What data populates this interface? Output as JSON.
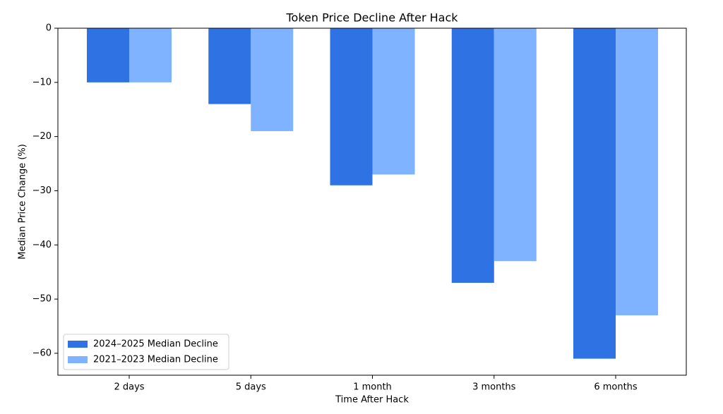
{
  "chart_data": {
    "type": "bar",
    "title": "Token Price Decline After Hack",
    "x_label": "Time After Hack",
    "y_label": "Median Price Change (%)",
    "categories": [
      "2 days",
      "5 days",
      "1 month",
      "3 months",
      "6 months"
    ],
    "series": [
      {
        "name": "2024–2025 Median Decline",
        "color": "#2f72e4",
        "values": [
          -10,
          -14,
          -29,
          -47,
          -61
        ]
      },
      {
        "name": "2021–2023 Median Decline",
        "color": "#7fb2ff",
        "values": [
          -10,
          -19,
          -27,
          -43,
          -53
        ]
      }
    ],
    "ylim": [
      -64.05,
      0
    ],
    "yticks": [
      0,
      {
        "value": -10,
        "label": "−10"
      },
      {
        "value": -20,
        "label": "−20"
      },
      {
        "value": -30,
        "label": "−30"
      },
      {
        "value": -40,
        "label": "−40"
      },
      {
        "value": -50,
        "label": "−50"
      },
      {
        "value": -60,
        "label": "−60"
      }
    ],
    "legend": "lower left"
  }
}
